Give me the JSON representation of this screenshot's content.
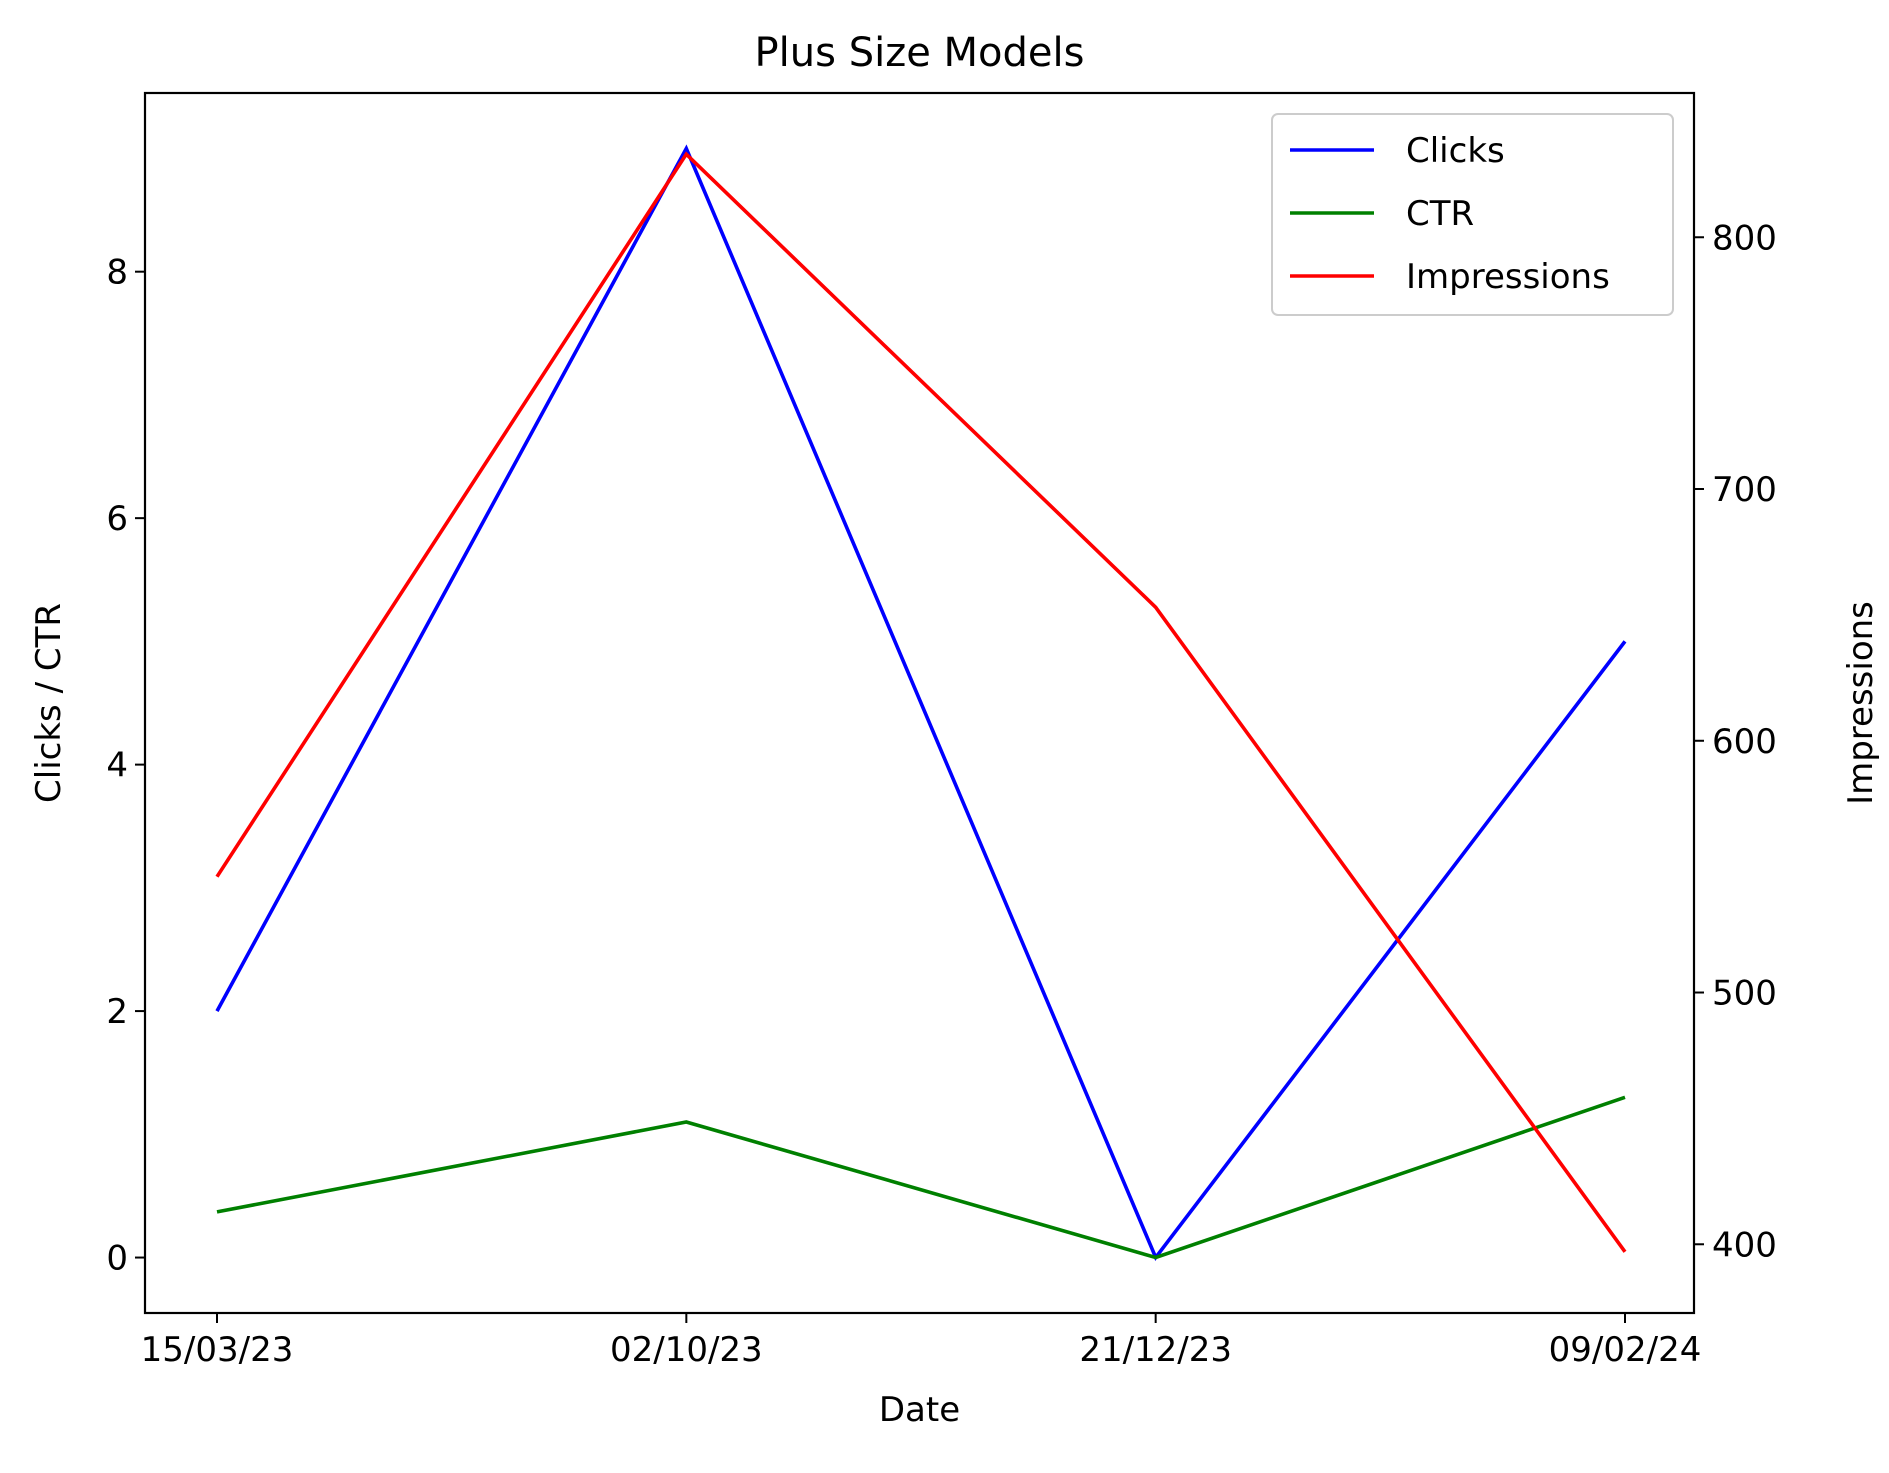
{
  "chart_data": {
    "type": "line",
    "title": "Plus Size Models",
    "xlabel": "Date",
    "ylabel_left": "Clicks / CTR",
    "ylabel_right": "Impressions",
    "categories": [
      "15/03/23",
      "02/10/23",
      "21/12/23",
      "09/02/24"
    ],
    "left_axis": {
      "ylim": [
        -0.45,
        9.45
      ],
      "ticks": [
        0,
        2,
        4,
        6,
        8
      ]
    },
    "right_axis": {
      "ylim": [
        372.7,
        857.3
      ],
      "ticks": [
        400,
        500,
        600,
        700,
        800
      ]
    },
    "grid": false,
    "legend_position": "top-right",
    "series": [
      {
        "name": "Clicks",
        "axis": "left",
        "color": "#0000ff",
        "values": [
          2,
          9,
          0,
          5
        ]
      },
      {
        "name": "CTR",
        "axis": "left",
        "color": "#008000",
        "values": [
          0.37,
          1.1,
          0.0,
          1.3
        ]
      },
      {
        "name": "Impressions",
        "axis": "right",
        "color": "#ff0000",
        "values": [
          546,
          833,
          653,
          397
        ]
      }
    ]
  }
}
